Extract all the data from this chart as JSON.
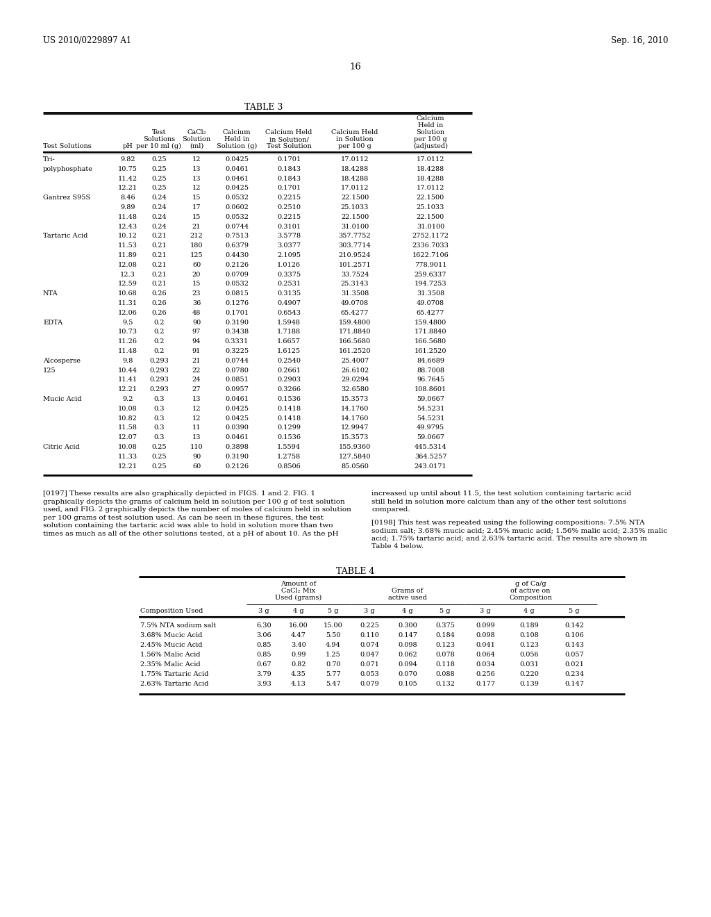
{
  "header_left": "US 2010/0229897 A1",
  "header_right": "Sep. 16, 2010",
  "page_number": "16",
  "table3_title": "TABLE 3",
  "table3_data": [
    [
      "Tri-",
      "9.82",
      "0.25",
      "12",
      "0.0425",
      "0.1701",
      "17.0112",
      "17.0112"
    ],
    [
      "polyphosphate",
      "10.75",
      "0.25",
      "13",
      "0.0461",
      "0.1843",
      "18.4288",
      "18.4288"
    ],
    [
      "",
      "11.42",
      "0.25",
      "13",
      "0.0461",
      "0.1843",
      "18.4288",
      "18.4288"
    ],
    [
      "",
      "12.21",
      "0.25",
      "12",
      "0.0425",
      "0.1701",
      "17.0112",
      "17.0112"
    ],
    [
      "Gantrez S95S",
      "8.46",
      "0.24",
      "15",
      "0.0532",
      "0.2215",
      "22.1500",
      "22.1500"
    ],
    [
      "",
      "9.89",
      "0.24",
      "17",
      "0.0602",
      "0.2510",
      "25.1033",
      "25.1033"
    ],
    [
      "",
      "11.48",
      "0.24",
      "15",
      "0.0532",
      "0.2215",
      "22.1500",
      "22.1500"
    ],
    [
      "",
      "12.43",
      "0.24",
      "21",
      "0.0744",
      "0.3101",
      "31.0100",
      "31.0100"
    ],
    [
      "Tartaric Acid",
      "10.12",
      "0.21",
      "212",
      "0.7513",
      "3.5778",
      "357.7752",
      "2752.1172"
    ],
    [
      "",
      "11.53",
      "0.21",
      "180",
      "0.6379",
      "3.0377",
      "303.7714",
      "2336.7033"
    ],
    [
      "",
      "11.89",
      "0.21",
      "125",
      "0.4430",
      "2.1095",
      "210.9524",
      "1622.7106"
    ],
    [
      "",
      "12.08",
      "0.21",
      "60",
      "0.2126",
      "1.0126",
      "101.2571",
      "778.9011"
    ],
    [
      "",
      "12.3",
      "0.21",
      "20",
      "0.0709",
      "0.3375",
      "33.7524",
      "259.6337"
    ],
    [
      "",
      "12.59",
      "0.21",
      "15",
      "0.0532",
      "0.2531",
      "25.3143",
      "194.7253"
    ],
    [
      "NTA",
      "10.68",
      "0.26",
      "23",
      "0.0815",
      "0.3135",
      "31.3508",
      "31.3508"
    ],
    [
      "",
      "11.31",
      "0.26",
      "36",
      "0.1276",
      "0.4907",
      "49.0708",
      "49.0708"
    ],
    [
      "",
      "12.06",
      "0.26",
      "48",
      "0.1701",
      "0.6543",
      "65.4277",
      "65.4277"
    ],
    [
      "EDTA",
      "9.5",
      "0.2",
      "90",
      "0.3190",
      "1.5948",
      "159.4800",
      "159.4800"
    ],
    [
      "",
      "10.73",
      "0.2",
      "97",
      "0.3438",
      "1.7188",
      "171.8840",
      "171.8840"
    ],
    [
      "",
      "11.26",
      "0.2",
      "94",
      "0.3331",
      "1.6657",
      "166.5680",
      "166.5680"
    ],
    [
      "",
      "11.48",
      "0.2",
      "91",
      "0.3225",
      "1.6125",
      "161.2520",
      "161.2520"
    ],
    [
      "Alcosperse",
      "9.8",
      "0.293",
      "21",
      "0.0744",
      "0.2540",
      "25.4007",
      "84.6689"
    ],
    [
      "125",
      "10.44",
      "0.293",
      "22",
      "0.0780",
      "0.2661",
      "26.6102",
      "88.7008"
    ],
    [
      "",
      "11.41",
      "0.293",
      "24",
      "0.0851",
      "0.2903",
      "29.0294",
      "96.7645"
    ],
    [
      "",
      "12.21",
      "0.293",
      "27",
      "0.0957",
      "0.3266",
      "32.6580",
      "108.8601"
    ],
    [
      "Mucic Acid",
      "9.2",
      "0.3",
      "13",
      "0.0461",
      "0.1536",
      "15.3573",
      "59.0667"
    ],
    [
      "",
      "10.08",
      "0.3",
      "12",
      "0.0425",
      "0.1418",
      "14.1760",
      "54.5231"
    ],
    [
      "",
      "10.82",
      "0.3",
      "12",
      "0.0425",
      "0.1418",
      "14.1760",
      "54.5231"
    ],
    [
      "",
      "11.58",
      "0.3",
      "11",
      "0.0390",
      "0.1299",
      "12.9947",
      "49.9795"
    ],
    [
      "",
      "12.07",
      "0.3",
      "13",
      "0.0461",
      "0.1536",
      "15.3573",
      "59.0667"
    ],
    [
      "Citric Acid",
      "10.08",
      "0.25",
      "110",
      "0.3898",
      "1.5594",
      "155.9360",
      "445.5314"
    ],
    [
      "",
      "11.33",
      "0.25",
      "90",
      "0.3190",
      "1.2758",
      "127.5840",
      "364.5257"
    ],
    [
      "",
      "12.21",
      "0.25",
      "60",
      "0.2126",
      "0.8506",
      "85.0560",
      "243.0171"
    ]
  ],
  "p197_left": "[0197]   These results are also graphically depicted in FIGS. 1 and 2. FIG. 1 graphically depicts the grams of calcium held in solution per 100 g of test solution used, and FIG. 2 graphically depicts the number of moles of calcium held in solution per 100 grams of test solution used. As can be seen in these figures, the test solution containing the tartaric acid was able to hold in solution more than two times as much as all of the other solutions tested, at a pH of about 10. As the pH",
  "p197_right": "increased up until about 11.5, the test solution containing tartaric acid still held in solution more calcium than any of the other test solutions compared.",
  "p198_right": "[0198]   This test was repeated using the following compositions: 7.5% NTA sodium salt; 3.68% mucic acid; 2.45% mucic acid; 1.56% malic acid; 2.35% malic acid; 1.75% tartaric acid; and 2.63% tartaric acid. The results are shown in Table 4 below.",
  "table4_title": "TABLE 4",
  "table4_data": [
    [
      "7.5% NTA sodium salt",
      "6.30",
      "16.00",
      "15.00",
      "0.225",
      "0.300",
      "0.375",
      "0.099",
      "0.189",
      "0.142"
    ],
    [
      "3.68% Mucic Acid",
      "3.06",
      "4.47",
      "5.50",
      "0.110",
      "0.147",
      "0.184",
      "0.098",
      "0.108",
      "0.106"
    ],
    [
      "2.45% Mucic Acid",
      "0.85",
      "3.40",
      "4.94",
      "0.074",
      "0.098",
      "0.123",
      "0.041",
      "0.123",
      "0.143"
    ],
    [
      "1.56% Malic Acid",
      "0.85",
      "0.99",
      "1.25",
      "0.047",
      "0.062",
      "0.078",
      "0.064",
      "0.056",
      "0.057"
    ],
    [
      "2.35% Malic Acid",
      "0.67",
      "0.82",
      "0.70",
      "0.071",
      "0.094",
      "0.118",
      "0.034",
      "0.031",
      "0.021"
    ],
    [
      "1.75% Tartaric Acid",
      "3.79",
      "4.35",
      "5.77",
      "0.053",
      "0.070",
      "0.088",
      "0.256",
      "0.220",
      "0.234"
    ],
    [
      "2.63% Tartaric Acid",
      "3.93",
      "4.13",
      "5.47",
      "0.079",
      "0.105",
      "0.132",
      "0.177",
      "0.139",
      "0.147"
    ]
  ]
}
